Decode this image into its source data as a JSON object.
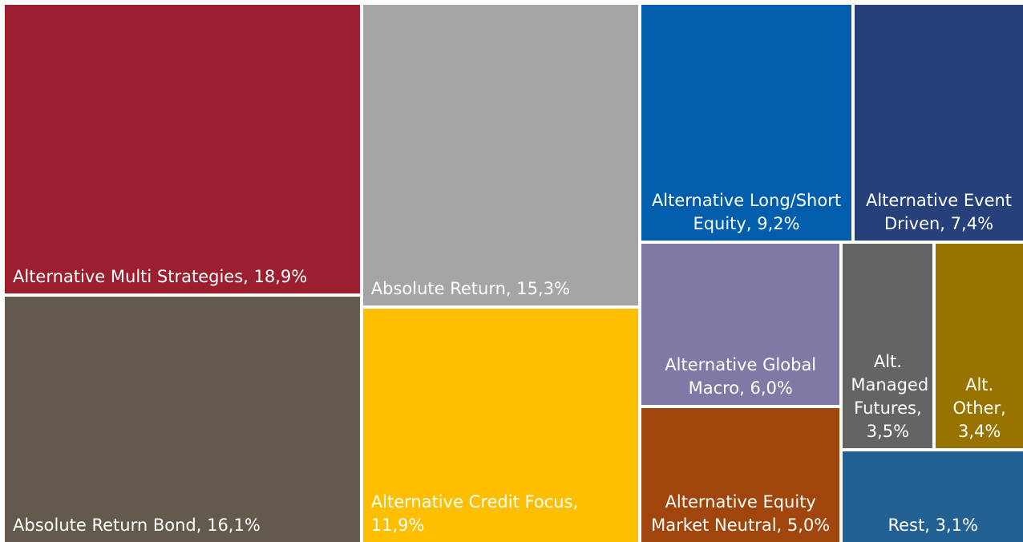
{
  "chart_data": {
    "type": "treemap",
    "categories": [
      "Alternative Multi Strategies,",
      "Absolute Return Bond,",
      "Absolute Return,",
      "Alternative Credit Focus,",
      "Alternative Long/Short Equity,",
      "Alternative Event Driven,",
      "Alternative Global Macro,",
      "Alternative Equity Market Neutral,",
      "Alt. Managed Futures,",
      "Alt. Other,",
      "Rest,"
    ],
    "values": [
      18.9,
      16.1,
      15.3,
      11.9,
      9.2,
      7.4,
      6.0,
      5.0,
      3.5,
      3.4,
      3.1
    ],
    "value_labels": [
      "18,9%",
      "16,1%",
      "15,3%",
      "11,9%",
      "9,2%",
      "7,4%",
      "6,0%",
      "5,0%",
      "3,5%",
      "3,4%",
      "3,1%"
    ],
    "colors": [
      "#9b1f2f",
      "#63594d",
      "#a5a5a5",
      "#fdbf00",
      "#005ead",
      "#26407a",
      "#8079a6",
      "#a0460c",
      "#646464",
      "#987300",
      "#236094"
    ]
  }
}
